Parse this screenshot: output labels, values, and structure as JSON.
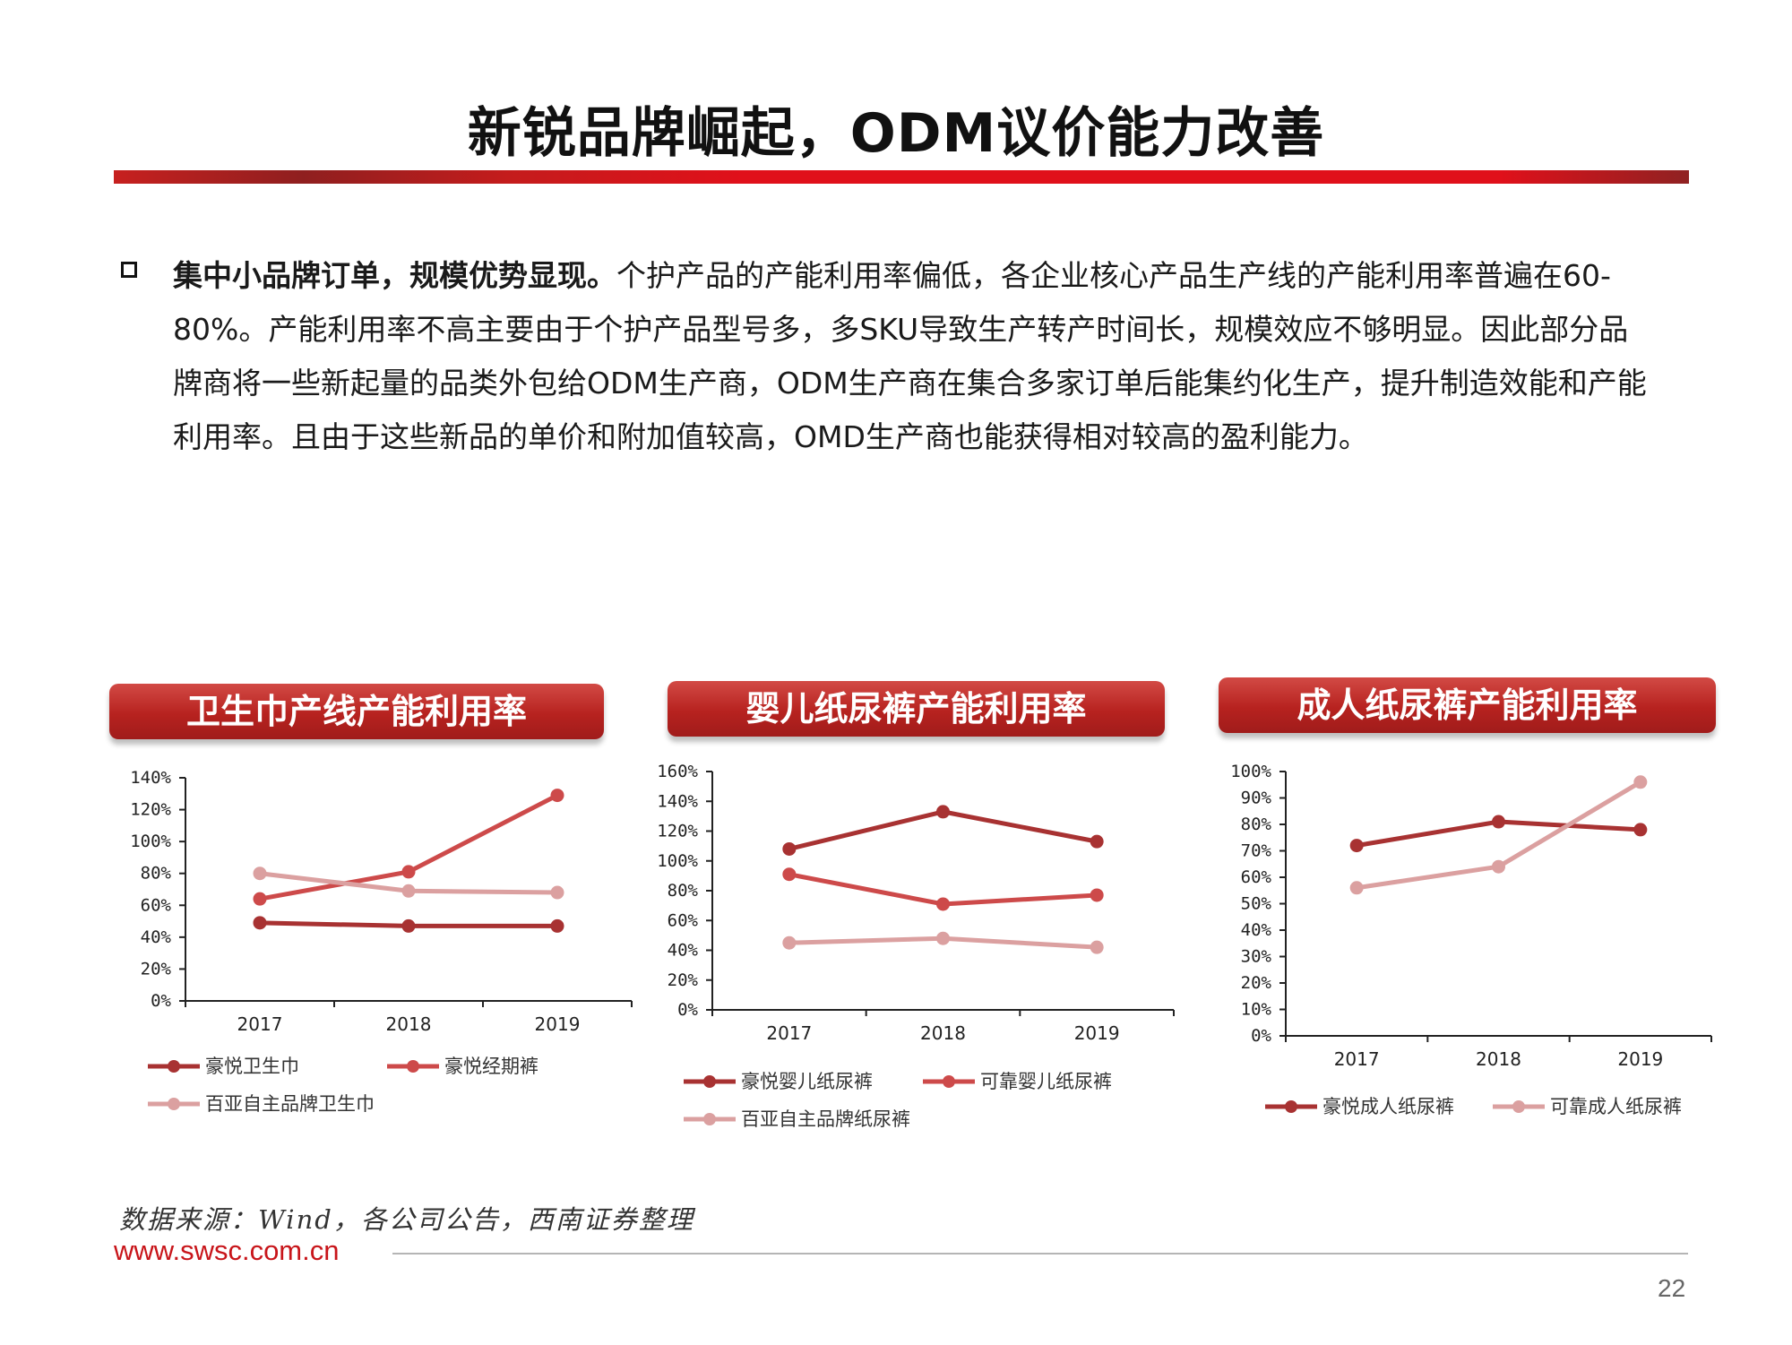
{
  "header": {
    "title": "新锐品牌崛起，ODM议价能力改善"
  },
  "paragraph": {
    "lead": "集中小品牌订单，规模优势显现。",
    "body": "个护产品的产能利用率偏低，各企业核心产品生产线的产能利用率普遍在60-80%。产能利用率不高主要由于个护产品型号多，多SKU导致生产转产时间长，规模效应不够明显。因此部分品牌商将一些新起量的品类外包给ODM生产商，ODM生产商在集合多家订单后能集约化生产，提升制造效能和产能利用率。且由于这些新品的单价和附加值较高，OMD生产商也能获得相对较高的盈利能力。"
  },
  "colors": {
    "dark": "#a83232",
    "mid": "#cd4a4a",
    "light": "#dba0a0"
  },
  "chart_data": [
    {
      "type": "line",
      "title": "卫生巾产线产能利用率",
      "categories": [
        "2017",
        "2018",
        "2019"
      ],
      "yticks": [
        "0%",
        "20%",
        "40%",
        "60%",
        "80%",
        "100%",
        "120%",
        "140%"
      ],
      "ylim": [
        0,
        140
      ],
      "series": [
        {
          "name": "豪悦卫生巾",
          "color": "dark",
          "values": [
            49,
            47,
            47
          ]
        },
        {
          "name": "豪悦经期裤",
          "color": "mid",
          "values": [
            64,
            81,
            129
          ]
        },
        {
          "name": "百亚自主品牌卫生巾",
          "color": "light",
          "values": [
            80,
            69,
            68
          ]
        }
      ]
    },
    {
      "type": "line",
      "title": "婴儿纸尿裤产能利用率",
      "categories": [
        "2017",
        "2018",
        "2019"
      ],
      "yticks": [
        "0%",
        "20%",
        "40%",
        "60%",
        "80%",
        "100%",
        "120%",
        "140%",
        "160%"
      ],
      "ylim": [
        0,
        160
      ],
      "series": [
        {
          "name": "豪悦婴儿纸尿裤",
          "color": "dark",
          "values": [
            108,
            133,
            113
          ]
        },
        {
          "name": "可靠婴儿纸尿裤",
          "color": "mid",
          "values": [
            91,
            71,
            77
          ]
        },
        {
          "name": "百亚自主品牌纸尿裤",
          "color": "light",
          "values": [
            45,
            48,
            42
          ]
        }
      ]
    },
    {
      "type": "line",
      "title": "成人纸尿裤产能利用率",
      "categories": [
        "2017",
        "2018",
        "2019"
      ],
      "yticks": [
        "0%",
        "10%",
        "20%",
        "30%",
        "40%",
        "50%",
        "60%",
        "70%",
        "80%",
        "90%",
        "100%"
      ],
      "ylim": [
        0,
        100
      ],
      "series": [
        {
          "name": "豪悦成人纸尿裤",
          "color": "dark",
          "values": [
            72,
            81,
            78
          ]
        },
        {
          "name": "可靠成人纸尿裤",
          "color": "light",
          "values": [
            56,
            64,
            96
          ]
        }
      ]
    }
  ],
  "footer": {
    "source": "数据来源：Wind，各公司公告，西南证券整理",
    "site": "www.swsc.com.cn",
    "page": "22"
  }
}
